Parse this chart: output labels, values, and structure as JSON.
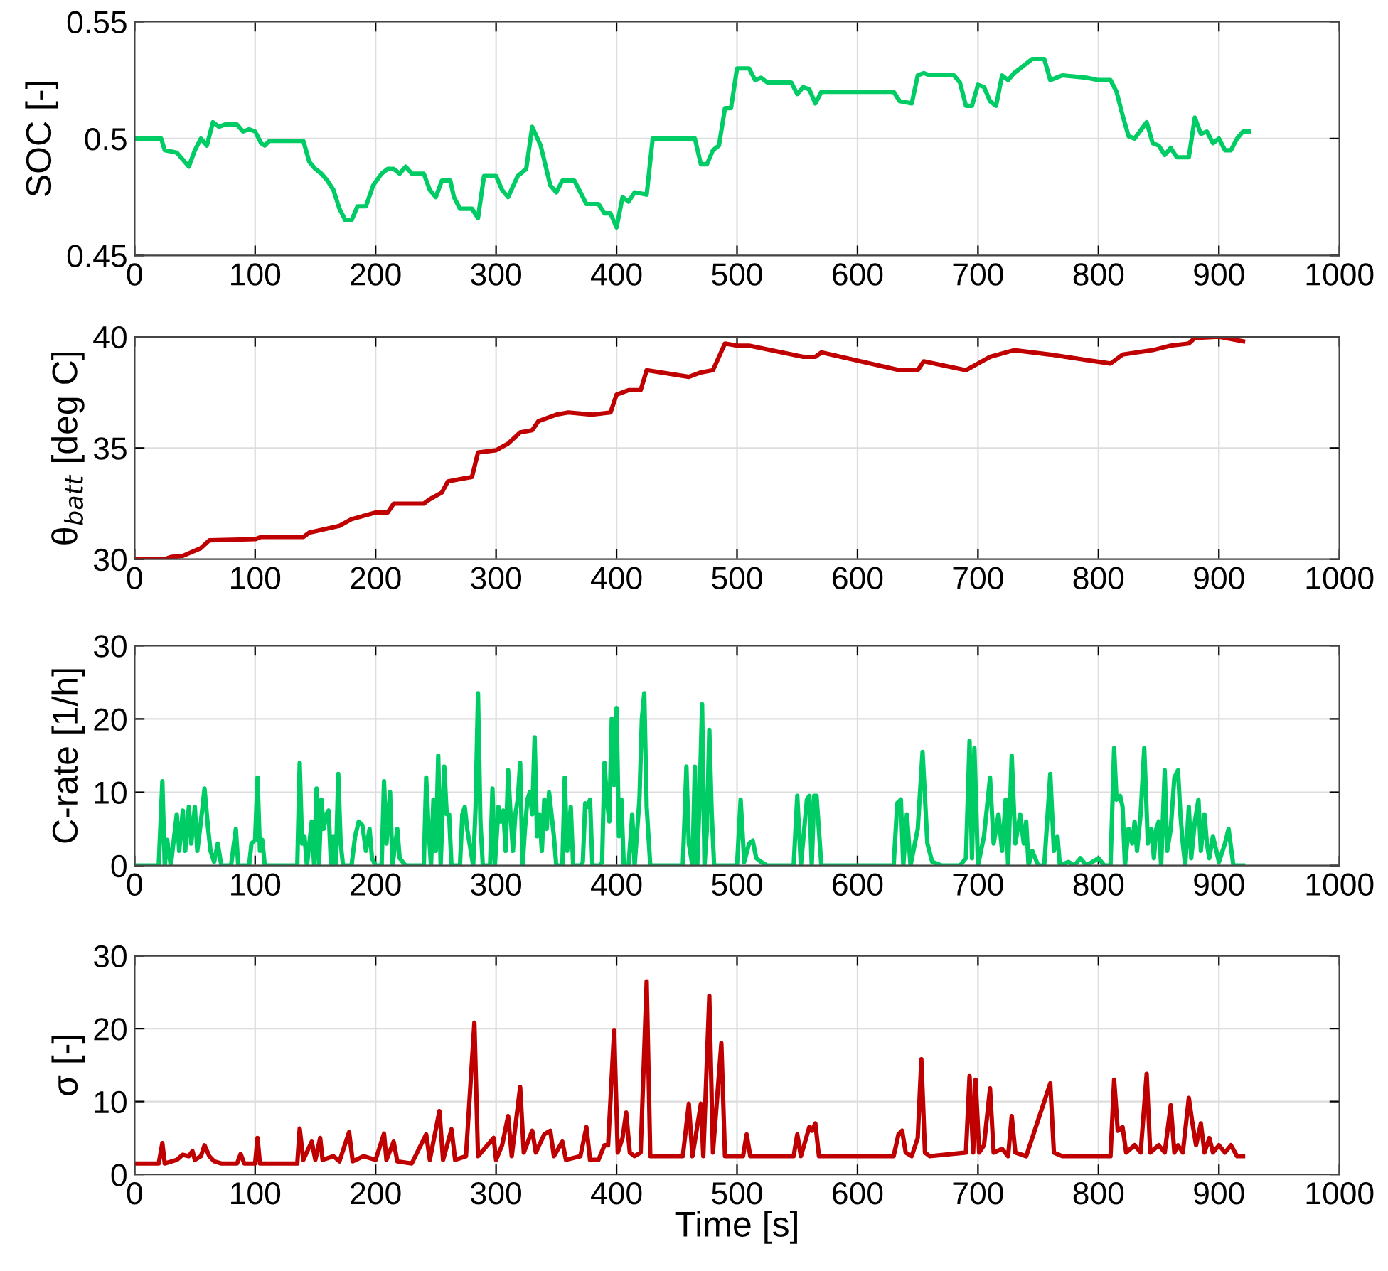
{
  "chart_data": [
    {
      "type": "line",
      "ylabel": "SOC [-]",
      "xlim": [
        0,
        1000
      ],
      "xticks": [
        0,
        100,
        200,
        300,
        400,
        500,
        600,
        700,
        800,
        900,
        1000
      ],
      "ylim": [
        0.45,
        0.55
      ],
      "yticks": [
        0.45,
        0.5,
        0.55
      ],
      "grid": true,
      "series": [
        {
          "color": "#00cc66",
          "x": [
            0,
            22,
            25,
            35,
            40,
            45,
            50,
            55,
            60,
            65,
            70,
            75,
            85,
            90,
            95,
            100,
            105,
            108,
            112,
            140,
            145,
            150,
            155,
            160,
            165,
            170,
            175,
            180,
            185,
            192,
            198,
            205,
            210,
            215,
            220,
            225,
            230,
            240,
            245,
            250,
            255,
            262,
            265,
            270,
            280,
            285,
            290,
            300,
            305,
            310,
            318,
            325,
            330,
            337,
            345,
            350,
            355,
            365,
            375,
            385,
            390,
            395,
            400,
            405,
            410,
            415,
            425,
            430,
            465,
            470,
            475,
            480,
            485,
            490,
            495,
            500,
            510,
            515,
            520,
            525,
            545,
            550,
            555,
            560,
            565,
            570,
            630,
            635,
            645,
            650,
            655,
            660,
            680,
            685,
            690,
            695,
            700,
            705,
            710,
            715,
            720,
            725,
            730,
            740,
            745,
            755,
            760,
            770,
            790,
            800,
            810,
            815,
            820,
            825,
            830,
            840,
            845,
            850,
            855,
            860,
            865,
            875,
            880,
            885,
            890,
            895,
            900,
            905,
            910,
            915,
            920,
            925
          ],
          "values": [
            0.5,
            0.5,
            0.495,
            0.494,
            0.491,
            0.488,
            0.495,
            0.5,
            0.497,
            0.507,
            0.505,
            0.506,
            0.506,
            0.503,
            0.504,
            0.503,
            0.498,
            0.497,
            0.499,
            0.499,
            0.49,
            0.487,
            0.485,
            0.482,
            0.478,
            0.47,
            0.465,
            0.465,
            0.471,
            0.471,
            0.48,
            0.485,
            0.487,
            0.487,
            0.485,
            0.488,
            0.485,
            0.485,
            0.478,
            0.475,
            0.482,
            0.482,
            0.475,
            0.47,
            0.47,
            0.466,
            0.484,
            0.484,
            0.478,
            0.475,
            0.484,
            0.487,
            0.505,
            0.497,
            0.48,
            0.477,
            0.482,
            0.482,
            0.472,
            0.472,
            0.468,
            0.468,
            0.462,
            0.475,
            0.473,
            0.477,
            0.476,
            0.5,
            0.5,
            0.489,
            0.489,
            0.495,
            0.497,
            0.513,
            0.513,
            0.53,
            0.53,
            0.525,
            0.526,
            0.524,
            0.524,
            0.519,
            0.522,
            0.521,
            0.515,
            0.52,
            0.52,
            0.516,
            0.515,
            0.527,
            0.528,
            0.527,
            0.527,
            0.524,
            0.514,
            0.514,
            0.523,
            0.522,
            0.516,
            0.514,
            0.527,
            0.525,
            0.528,
            0.532,
            0.534,
            0.534,
            0.525,
            0.527,
            0.526,
            0.525,
            0.525,
            0.52,
            0.51,
            0.501,
            0.5,
            0.507,
            0.498,
            0.497,
            0.493,
            0.496,
            0.492,
            0.492,
            0.509,
            0.502,
            0.503,
            0.498,
            0.5,
            0.495,
            0.495,
            0.5,
            0.503,
            0.503
          ]
        }
      ]
    },
    {
      "type": "line",
      "ylabel": "θ$_{batt}$ [deg C]",
      "xlim": [
        0,
        1000
      ],
      "xticks": [
        0,
        100,
        200,
        300,
        400,
        500,
        600,
        700,
        800,
        900,
        1000
      ],
      "ylim": [
        30,
        40
      ],
      "yticks": [
        30,
        35,
        40
      ],
      "grid": true,
      "series": [
        {
          "color": "#c00000",
          "x": [
            0,
            25,
            30,
            40,
            55,
            62,
            100,
            105,
            140,
            145,
            170,
            180,
            200,
            210,
            215,
            240,
            245,
            255,
            260,
            270,
            280,
            285,
            300,
            310,
            320,
            330,
            335,
            350,
            360,
            380,
            395,
            400,
            410,
            420,
            425,
            460,
            470,
            480,
            485,
            490,
            500,
            510,
            555,
            565,
            570,
            635,
            650,
            655,
            690,
            700,
            710,
            730,
            760,
            810,
            820,
            845,
            860,
            875,
            880,
            900,
            920
          ],
          "values": [
            30,
            30,
            30.1,
            30.15,
            30.5,
            30.85,
            30.9,
            31,
            31,
            31.2,
            31.5,
            31.8,
            32.1,
            32.1,
            32.5,
            32.5,
            32.7,
            33,
            33.5,
            33.6,
            33.7,
            34.8,
            34.9,
            35.2,
            35.7,
            35.8,
            36.2,
            36.5,
            36.6,
            36.5,
            36.6,
            37.4,
            37.6,
            37.6,
            38.5,
            38.2,
            38.4,
            38.5,
            39.1,
            39.7,
            39.6,
            39.6,
            39.1,
            39.1,
            39.3,
            38.5,
            38.5,
            38.9,
            38.5,
            38.8,
            39.1,
            39.4,
            39.2,
            38.8,
            39.2,
            39.4,
            39.6,
            39.7,
            39.95,
            40,
            39.8
          ]
        }
      ]
    },
    {
      "type": "line",
      "ylabel": "C-rate [1/h]",
      "xlim": [
        0,
        1000
      ],
      "xticks": [
        0,
        100,
        200,
        300,
        400,
        500,
        600,
        700,
        800,
        900,
        1000
      ],
      "ylim": [
        0,
        30
      ],
      "yticks": [
        0,
        10,
        20,
        30
      ],
      "grid": true,
      "series": [
        {
          "color": "#00cc66",
          "x": [
            0,
            20,
            23,
            25,
            27,
            30,
            35,
            37,
            40,
            42,
            45,
            47,
            50,
            52,
            55,
            58,
            61,
            63,
            66,
            69,
            72,
            80,
            84,
            86,
            95,
            97,
            100,
            102,
            104,
            106,
            108,
            135,
            137,
            139,
            141,
            143,
            147,
            149,
            151,
            153,
            155,
            157,
            159,
            161,
            163,
            165,
            167,
            169,
            171,
            173,
            180,
            183,
            186,
            189,
            192,
            195,
            197,
            200,
            205,
            207,
            209,
            212,
            214,
            218,
            220,
            225,
            240,
            242,
            244,
            246,
            248,
            250,
            252,
            254,
            257,
            259,
            261,
            263,
            270,
            272,
            274,
            276,
            278,
            281,
            283,
            285,
            287,
            289,
            295,
            297,
            299,
            302,
            304,
            306,
            308,
            310,
            312,
            314,
            316,
            318,
            320,
            322,
            324,
            326,
            328,
            330,
            332,
            334,
            336,
            338,
            340,
            342,
            344,
            346,
            348,
            350,
            355,
            357,
            359,
            362,
            364,
            370,
            372,
            374,
            376,
            378,
            380,
            386,
            388,
            390,
            392,
            394,
            396,
            398,
            400,
            402,
            404,
            406,
            410,
            413,
            415,
            419,
            421,
            423,
            425,
            428,
            455,
            458,
            460,
            463,
            465,
            467,
            469,
            471,
            473,
            475,
            477,
            479,
            481,
            500,
            503,
            506,
            510,
            513,
            516,
            520,
            525,
            547,
            550,
            553,
            558,
            560,
            562,
            564,
            566,
            570,
            630,
            633,
            636,
            638,
            641,
            644,
            650,
            654,
            658,
            662,
            670,
            685,
            690,
            693,
            695,
            697,
            700,
            705,
            710,
            713,
            717,
            720,
            723,
            725,
            728,
            731,
            735,
            738,
            740,
            742,
            745,
            750,
            755,
            760,
            763,
            766,
            768,
            775,
            780,
            785,
            790,
            800,
            805,
            810,
            813,
            815,
            818,
            820,
            822,
            825,
            828,
            830,
            832,
            835,
            838,
            841,
            844,
            846,
            848,
            850,
            852,
            855,
            857,
            860,
            863,
            866,
            868,
            870,
            872,
            875,
            877,
            880,
            883,
            885,
            888,
            890,
            892,
            895,
            900,
            905,
            908,
            912,
            920
          ],
          "values": [
            0,
            0,
            11.5,
            0,
            3.5,
            0,
            7,
            2,
            7.5,
            2,
            8,
            3,
            8,
            2,
            6,
            10.5,
            5,
            2,
            0.5,
            3,
            0,
            0,
            5,
            0,
            0,
            3,
            3.5,
            12,
            2,
            3.5,
            0,
            0,
            14,
            3,
            4,
            0,
            6,
            0,
            10.5,
            0,
            9,
            5,
            7,
            7.5,
            0,
            4,
            0,
            12.5,
            3,
            0,
            0,
            4,
            6,
            5.5,
            2,
            5,
            1,
            0,
            0,
            11.5,
            3,
            10,
            0,
            5,
            1,
            0,
            0,
            12,
            5,
            0,
            9,
            2,
            15,
            0,
            13.5,
            7,
            7,
            0,
            0,
            7,
            8,
            5,
            3,
            0,
            8,
            23.5,
            6,
            0,
            0,
            10.5,
            0,
            8,
            6,
            7.5,
            2,
            13,
            7,
            2,
            7,
            9,
            14,
            0,
            5,
            9,
            10,
            7,
            17.5,
            4,
            7,
            2,
            9,
            5,
            10,
            7,
            4,
            0,
            0,
            12,
            2,
            8,
            0,
            0,
            0.5,
            8.5,
            8,
            9,
            0,
            0,
            0.5,
            14,
            9,
            6,
            20,
            11,
            21.5,
            4,
            9,
            0,
            0,
            7,
            0,
            9,
            20,
            23.5,
            8,
            0,
            0,
            13.5,
            3,
            0,
            13.5,
            0,
            9.5,
            22,
            0,
            5,
            18.5,
            7,
            0,
            0,
            9,
            0.5,
            3,
            3.4,
            1,
            0.5,
            0,
            0,
            9.5,
            0,
            9,
            9.5,
            0,
            9.5,
            9.5,
            0,
            0,
            8.5,
            9,
            0,
            7,
            0,
            5,
            15.5,
            3,
            0.5,
            0,
            0,
            1,
            17,
            1,
            16,
            0,
            4,
            12,
            3,
            7,
            2,
            9,
            0,
            15,
            3,
            7,
            3,
            6,
            0,
            2,
            0,
            0,
            12.5,
            2,
            4,
            0,
            0.5,
            0,
            1,
            0,
            1,
            0,
            0,
            16,
            9,
            9.5,
            8,
            0,
            5,
            3,
            6,
            2,
            7,
            16,
            3,
            5,
            1,
            5,
            6,
            0,
            13,
            2,
            5,
            12,
            13,
            7,
            3,
            0,
            8,
            1,
            6,
            9,
            2,
            7,
            3,
            1,
            4,
            0.5,
            3,
            5,
            0,
            0
          ]
        }
      ]
    },
    {
      "type": "line",
      "ylabel": "σ [-]",
      "xlabel": "Time [s]",
      "xlim": [
        0,
        1000
      ],
      "xticks": [
        0,
        100,
        200,
        300,
        400,
        500,
        600,
        700,
        800,
        900,
        1000
      ],
      "ylim": [
        0,
        30
      ],
      "yticks": [
        0,
        10,
        20,
        30
      ],
      "grid": true,
      "series": [
        {
          "color": "#c00000",
          "x": [
            0,
            20,
            23,
            25,
            35,
            40,
            45,
            48,
            50,
            55,
            58,
            62,
            66,
            72,
            85,
            88,
            91,
            100,
            102,
            104,
            135,
            137,
            140,
            147,
            150,
            154,
            156,
            165,
            170,
            178,
            181,
            190,
            200,
            207,
            209,
            215,
            218,
            230,
            242,
            245,
            253,
            256,
            263,
            266,
            275,
            282,
            285,
            298,
            300,
            305,
            310,
            313,
            320,
            323,
            330,
            333,
            340,
            345,
            348,
            355,
            358,
            370,
            375,
            378,
            385,
            390,
            393,
            398,
            401,
            405,
            408,
            411,
            415,
            420,
            425,
            428,
            455,
            460,
            463,
            470,
            472,
            477,
            480,
            487,
            490,
            505,
            508,
            511,
            520,
            547,
            550,
            553,
            560,
            562,
            565,
            568,
            630,
            634,
            637,
            640,
            645,
            650,
            653,
            656,
            660,
            690,
            693,
            696,
            698,
            701,
            705,
            710,
            713,
            720,
            725,
            728,
            731,
            740,
            760,
            763,
            770,
            800,
            810,
            813,
            816,
            820,
            823,
            830,
            835,
            840,
            843,
            850,
            855,
            860,
            863,
            866,
            870,
            875,
            878,
            881,
            885,
            888,
            892,
            895,
            900,
            905,
            910,
            915,
            920
          ],
          "values": [
            1.5,
            1.5,
            4.3,
            1.5,
            2,
            2.7,
            2.5,
            3.2,
            2,
            2.5,
            4,
            2.5,
            1.8,
            1.5,
            1.5,
            2.8,
            1.5,
            1.5,
            5,
            1.5,
            1.5,
            6.3,
            2,
            4.5,
            2,
            5,
            2,
            2.5,
            1.8,
            5.8,
            1.8,
            2.5,
            2,
            5.6,
            2,
            4.5,
            1.8,
            1.5,
            5.5,
            2,
            8.7,
            2,
            6.2,
            2,
            2.5,
            20.8,
            2.5,
            5,
            2,
            4,
            8,
            2.5,
            12,
            3,
            6,
            3,
            5.5,
            6,
            2.5,
            4.5,
            2,
            2.5,
            6.5,
            2,
            2,
            4,
            4,
            19.8,
            3,
            5,
            8.5,
            3,
            2.5,
            3,
            26.5,
            2.5,
            2.5,
            9.7,
            2.5,
            9.7,
            2.5,
            24.5,
            3,
            18,
            2.5,
            2.5,
            5.5,
            2.5,
            2.5,
            2.5,
            5.5,
            2.5,
            6.5,
            6,
            7,
            2.5,
            2.5,
            5.5,
            6,
            3,
            2.5,
            5,
            15.8,
            3,
            2.5,
            3,
            13.5,
            3,
            13,
            3,
            4,
            11.8,
            3,
            3.5,
            2.5,
            8,
            3,
            2.5,
            12.5,
            3,
            2.5,
            2.5,
            2.5,
            13,
            6,
            6.5,
            3,
            4,
            3,
            13.8,
            3,
            4,
            3,
            9.5,
            3,
            4,
            3,
            10.5,
            7,
            4,
            7,
            3,
            5,
            3,
            4,
            3,
            4,
            2.5,
            2.5
          ]
        }
      ]
    }
  ]
}
